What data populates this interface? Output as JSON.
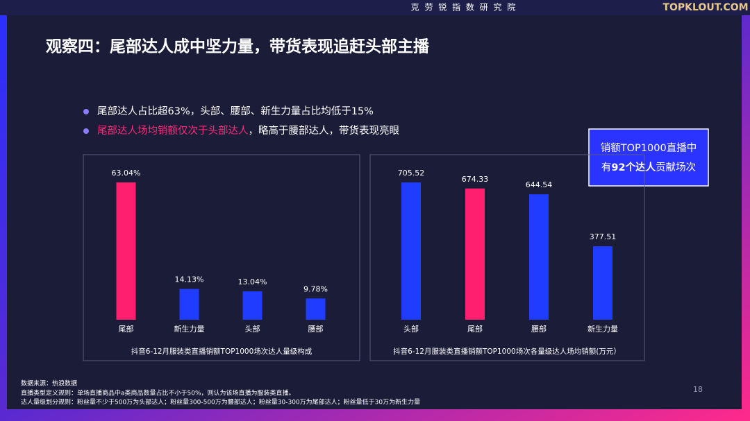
{
  "header": {
    "institute": "克 劳 锐 指 数 研 究 院",
    "logo": "TOPKLOUT.COM"
  },
  "title": "观察四：尾部达人成中坚力量，带货表现追赶头部主播",
  "bullets": [
    {
      "text": "尾部达人占比超63%，头部、腰部、新生力量占比均低于15%"
    },
    {
      "highlight": "尾部达人场均销额仅次于头部达人",
      "text": "，略高于腰部达人，带货表现亮眼"
    }
  ],
  "callout": {
    "line1": "销额TOP1000直播中",
    "prefix": "有",
    "highlight": "92个达人",
    "suffix": "贡献场次"
  },
  "chart_data": [
    {
      "type": "bar",
      "title": "抖音6-12月服装类直播销额TOP1000场次达人量级构成",
      "categories": [
        "尾部",
        "新生力量",
        "头部",
        "腰部"
      ],
      "values": [
        63.04,
        14.13,
        13.04,
        9.78
      ],
      "value_labels": [
        "63.04%",
        "14.13%",
        "13.04%",
        "9.78%"
      ],
      "colors": [
        "#ff1f6e",
        "#1f3cff",
        "#1f3cff",
        "#1f3cff"
      ]
    },
    {
      "type": "bar",
      "title": "抖音6-12月服装类直播销额TOP1000场次各量级达人场均销额(万元）",
      "categories": [
        "头部",
        "尾部",
        "腰部",
        "新生力量"
      ],
      "values": [
        705.52,
        674.33,
        644.54,
        377.51
      ],
      "colors": [
        "#1f3cff",
        "#ff1f6e",
        "#1f3cff",
        "#1f3cff"
      ]
    }
  ],
  "footer": {
    "source": "数据来源：热浪数据",
    "rule1": "直播类型定义规则：单场直播商品中a类商品数量占比不小于50%，则认为该场直播为服装类直播。",
    "rule2": "达人量级划分规则：粉丝量不少于500万为头部达人；粉丝量300-500万为腰部达人；粉丝量30-300万为尾部达人；粉丝量低于30万为新生力量",
    "page": 18
  }
}
